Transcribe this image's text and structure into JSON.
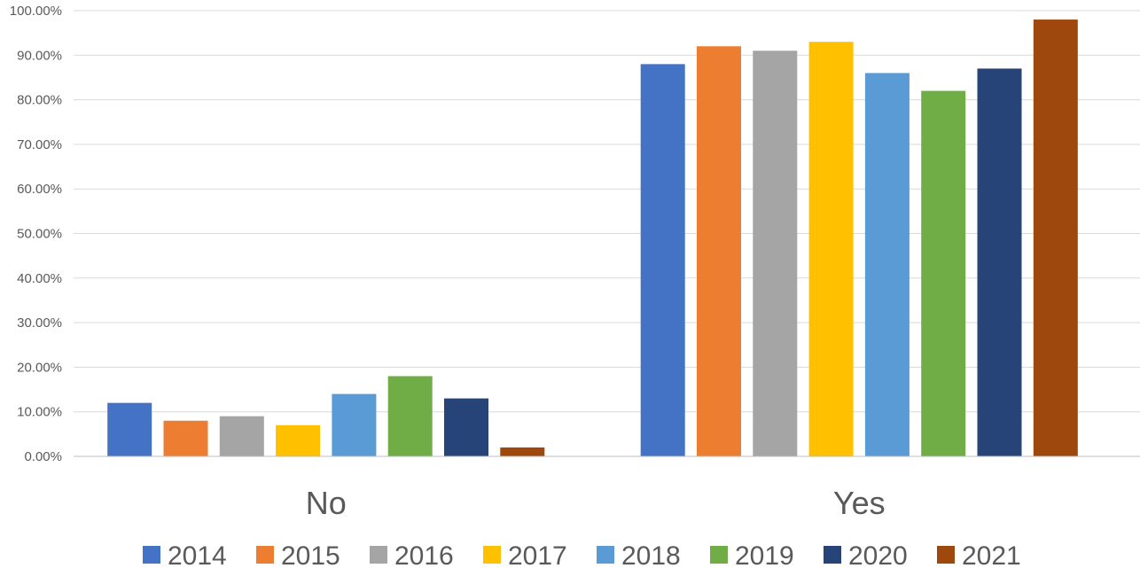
{
  "chart_data": {
    "type": "bar",
    "categories": [
      "No",
      "Yes"
    ],
    "series": [
      {
        "name": "2014",
        "color": "#4472c4",
        "values": [
          12,
          88
        ]
      },
      {
        "name": "2015",
        "color": "#ed7d31",
        "values": [
          8,
          92
        ]
      },
      {
        "name": "2016",
        "color": "#a5a5a5",
        "values": [
          9,
          91
        ]
      },
      {
        "name": "2017",
        "color": "#ffc000",
        "values": [
          7,
          93
        ]
      },
      {
        "name": "2018",
        "color": "#5b9bd5",
        "values": [
          14,
          86
        ]
      },
      {
        "name": "2019",
        "color": "#70ad47",
        "values": [
          18,
          82
        ]
      },
      {
        "name": "2020",
        "color": "#264478",
        "values": [
          13,
          87
        ]
      },
      {
        "name": "2021",
        "color": "#9e480e",
        "values": [
          2,
          98
        ]
      }
    ],
    "ylim": [
      0,
      100
    ],
    "yticks": [
      0,
      10,
      20,
      30,
      40,
      50,
      60,
      70,
      80,
      90,
      100
    ],
    "ytick_labels": [
      "0.00%",
      "10.00%",
      "20.00%",
      "30.00%",
      "40.00%",
      "50.00%",
      "60.00%",
      "70.00%",
      "80.00%",
      "90.00%",
      "100.00%"
    ],
    "grid": true,
    "legend_position": "bottom",
    "title": "",
    "xlabel": "",
    "ylabel": ""
  }
}
